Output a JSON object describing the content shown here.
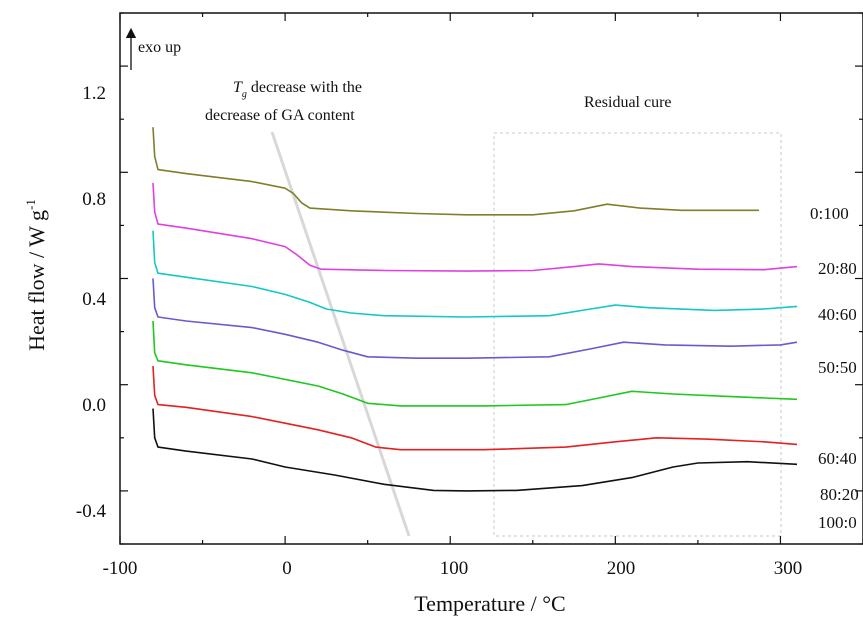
{
  "chart_data": {
    "type": "line",
    "xlabel": "Temperature / °C",
    "ylabel_main": "Heat flow / W g",
    "ylabel_sup": "-1",
    "xlim": [
      -100,
      350
    ],
    "ylim": [
      -0.5,
      1.5
    ],
    "x_ticks": [
      -100,
      0,
      100,
      200,
      300
    ],
    "x_tick_labels": [
      "-100",
      "0",
      "100",
      "200",
      "300"
    ],
    "y_ticks": [
      -0.4,
      0.0,
      0.4,
      0.8,
      1.2
    ],
    "y_tick_labels": [
      "-0.4",
      "0.0",
      "0.4",
      "0.8",
      "1.2"
    ],
    "grid": false,
    "annotations": {
      "exo": "exo up",
      "tg_symbol": "T",
      "tg_sub": "g",
      "tg_line1_rest": " decrease with the",
      "tg_line2": "decrease of GA content",
      "residual": "Residual cure"
    },
    "series": [
      {
        "name": "0:100",
        "color": "#7f7f2a",
        "points": [
          [
            -80,
            1.07
          ],
          [
            -79,
            0.96
          ],
          [
            -77,
            0.91
          ],
          [
            -60,
            0.895
          ],
          [
            -20,
            0.865
          ],
          [
            0,
            0.84
          ],
          [
            5,
            0.82
          ],
          [
            10,
            0.785
          ],
          [
            15,
            0.765
          ],
          [
            40,
            0.755
          ],
          [
            80,
            0.745
          ],
          [
            110,
            0.74
          ],
          [
            150,
            0.74
          ],
          [
            175,
            0.755
          ],
          [
            195,
            0.78
          ],
          [
            215,
            0.765
          ],
          [
            240,
            0.757
          ],
          [
            260,
            0.757
          ],
          [
            287,
            0.757
          ]
        ]
      },
      {
        "name": "20:80",
        "color": "#e040e0",
        "points": [
          [
            -80,
            0.86
          ],
          [
            -79,
            0.75
          ],
          [
            -77,
            0.705
          ],
          [
            -60,
            0.69
          ],
          [
            -20,
            0.65
          ],
          [
            0,
            0.62
          ],
          [
            7,
            0.59
          ],
          [
            15,
            0.55
          ],
          [
            22,
            0.535
          ],
          [
            60,
            0.53
          ],
          [
            110,
            0.528
          ],
          [
            150,
            0.53
          ],
          [
            175,
            0.545
          ],
          [
            190,
            0.555
          ],
          [
            210,
            0.545
          ],
          [
            250,
            0.535
          ],
          [
            290,
            0.533
          ],
          [
            310,
            0.545
          ]
        ]
      },
      {
        "name": "40:60",
        "color": "#14c8c8",
        "points": [
          [
            -80,
            0.68
          ],
          [
            -79,
            0.56
          ],
          [
            -77,
            0.52
          ],
          [
            -60,
            0.505
          ],
          [
            -20,
            0.47
          ],
          [
            0,
            0.44
          ],
          [
            15,
            0.41
          ],
          [
            25,
            0.385
          ],
          [
            40,
            0.37
          ],
          [
            60,
            0.36
          ],
          [
            110,
            0.355
          ],
          [
            160,
            0.36
          ],
          [
            185,
            0.385
          ],
          [
            200,
            0.4
          ],
          [
            220,
            0.39
          ],
          [
            260,
            0.38
          ],
          [
            290,
            0.385
          ],
          [
            310,
            0.395
          ]
        ]
      },
      {
        "name": "50:50",
        "color": "#6a5acd",
        "points": [
          [
            -80,
            0.5
          ],
          [
            -79,
            0.39
          ],
          [
            -77,
            0.355
          ],
          [
            -60,
            0.34
          ],
          [
            -20,
            0.315
          ],
          [
            0,
            0.29
          ],
          [
            20,
            0.26
          ],
          [
            35,
            0.23
          ],
          [
            50,
            0.205
          ],
          [
            80,
            0.2
          ],
          [
            110,
            0.2
          ],
          [
            160,
            0.205
          ],
          [
            185,
            0.235
          ],
          [
            205,
            0.26
          ],
          [
            230,
            0.25
          ],
          [
            270,
            0.245
          ],
          [
            300,
            0.25
          ],
          [
            310,
            0.26
          ]
        ]
      },
      {
        "name": "60:40",
        "color": "#1ec81e",
        "points": [
          [
            -80,
            0.34
          ],
          [
            -79,
            0.22
          ],
          [
            -77,
            0.19
          ],
          [
            -60,
            0.175
          ],
          [
            -20,
            0.145
          ],
          [
            0,
            0.12
          ],
          [
            20,
            0.095
          ],
          [
            35,
            0.065
          ],
          [
            50,
            0.03
          ],
          [
            70,
            0.02
          ],
          [
            120,
            0.02
          ],
          [
            170,
            0.025
          ],
          [
            190,
            0.05
          ],
          [
            210,
            0.075
          ],
          [
            235,
            0.065
          ],
          [
            270,
            0.055
          ],
          [
            310,
            0.045
          ]
        ]
      },
      {
        "name": "80:20",
        "color": "#e52020",
        "points": [
          [
            -80,
            0.17
          ],
          [
            -79,
            0.06
          ],
          [
            -77,
            0.025
          ],
          [
            -60,
            0.015
          ],
          [
            -20,
            -0.02
          ],
          [
            0,
            -0.045
          ],
          [
            20,
            -0.07
          ],
          [
            40,
            -0.1
          ],
          [
            55,
            -0.135
          ],
          [
            70,
            -0.145
          ],
          [
            120,
            -0.145
          ],
          [
            170,
            -0.135
          ],
          [
            200,
            -0.115
          ],
          [
            225,
            -0.1
          ],
          [
            255,
            -0.105
          ],
          [
            290,
            -0.115
          ],
          [
            310,
            -0.125
          ]
        ]
      },
      {
        "name": "100:0",
        "color": "#111111",
        "points": [
          [
            -80,
            0.01
          ],
          [
            -79,
            -0.1
          ],
          [
            -77,
            -0.135
          ],
          [
            -60,
            -0.15
          ],
          [
            -20,
            -0.18
          ],
          [
            0,
            -0.21
          ],
          [
            30,
            -0.24
          ],
          [
            60,
            -0.275
          ],
          [
            90,
            -0.298
          ],
          [
            110,
            -0.3
          ],
          [
            140,
            -0.298
          ],
          [
            180,
            -0.28
          ],
          [
            210,
            -0.25
          ],
          [
            235,
            -0.21
          ],
          [
            250,
            -0.195
          ],
          [
            280,
            -0.19
          ],
          [
            310,
            -0.2
          ]
        ]
      }
    ]
  }
}
